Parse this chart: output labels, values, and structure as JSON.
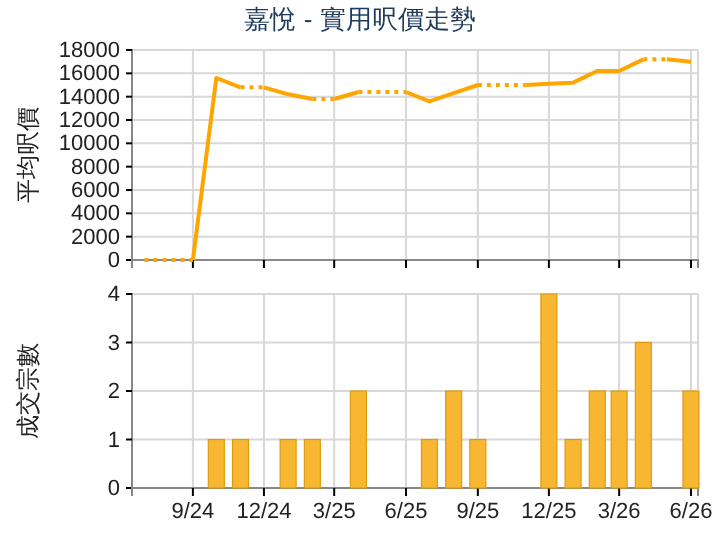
{
  "chart_data": [
    {
      "type": "line",
      "title": "嘉悅 - 實用呎價走勢",
      "ylabel": "平均呎價",
      "xlim": [
        "2024-06-15",
        "2026-06-10"
      ],
      "ylim": [
        0,
        18000
      ],
      "yticks": [
        0,
        2000,
        4000,
        6000,
        8000,
        10000,
        12000,
        14000,
        16000,
        18000
      ],
      "xticks": [
        {
          "value": "2024-09",
          "label": null
        },
        {
          "value": "2024-12",
          "label": null
        },
        {
          "value": "2025-03",
          "label": null
        },
        {
          "value": "2025-06",
          "label": null
        },
        {
          "value": "2025-09",
          "label": null
        },
        {
          "value": "2025-12",
          "label": null
        },
        {
          "value": "2026-03",
          "label": null
        },
        {
          "value": "2026-06",
          "label": null
        }
      ],
      "grid": true,
      "tick_labels": "y",
      "series": [
        {
          "color": "#ffa500",
          "line_style": "dotted",
          "x": [
            "2024-07",
            "2024-08",
            "2024-09"
          ],
          "values": [
            0,
            0,
            0
          ]
        },
        {
          "color": "#ffa500",
          "line_style": "solid",
          "x": [
            "2024-09",
            "2024-10",
            "2024-11"
          ],
          "values": [
            0,
            15600,
            14800
          ]
        },
        {
          "color": "#ffa500",
          "line_style": "dotted",
          "x": [
            "2024-11",
            "2024-12"
          ],
          "values": [
            14800,
            14800
          ]
        },
        {
          "color": "#ffa500",
          "line_style": "solid",
          "x": [
            "2024-12",
            "2025-01",
            "2025-02"
          ],
          "values": [
            14800,
            14200,
            13800
          ]
        },
        {
          "color": "#ffa500",
          "line_style": "dotted",
          "x": [
            "2025-02",
            "2025-03"
          ],
          "values": [
            13800,
            13800
          ]
        },
        {
          "color": "#ffa500",
          "line_style": "solid",
          "x": [
            "2025-03",
            "2025-04"
          ],
          "values": [
            13800,
            14400
          ]
        },
        {
          "color": "#ffa500",
          "line_style": "dotted",
          "x": [
            "2025-04",
            "2025-05",
            "2025-06"
          ],
          "values": [
            14400,
            14400,
            14400
          ]
        },
        {
          "color": "#ffa500",
          "line_style": "solid",
          "x": [
            "2025-06",
            "2025-07",
            "2025-08",
            "2025-09"
          ],
          "values": [
            14400,
            13600,
            14300,
            15000
          ]
        },
        {
          "color": "#ffa500",
          "line_style": "dotted",
          "x": [
            "2025-09",
            "2025-10",
            "2025-11"
          ],
          "values": [
            15000,
            15000,
            15000
          ]
        },
        {
          "color": "#ffa500",
          "line_style": "solid",
          "x": [
            "2025-11",
            "2025-12",
            "2026-01",
            "2026-02",
            "2026-03",
            "2026-04"
          ],
          "values": [
            15000,
            15100,
            15200,
            16200,
            16200,
            17200
          ]
        },
        {
          "color": "#ffa500",
          "line_style": "dotted",
          "x": [
            "2026-04",
            "2026-05"
          ],
          "values": [
            17200,
            17200
          ]
        },
        {
          "color": "#ffa500",
          "line_style": "solid",
          "x": [
            "2026-05",
            "2026-06"
          ],
          "values": [
            17200,
            17000
          ]
        }
      ]
    },
    {
      "type": "bar",
      "ylabel": "成交宗數",
      "xlim": [
        "2024-06-15",
        "2026-06-10"
      ],
      "ylim": [
        0,
        4
      ],
      "yticks": [
        0,
        1,
        2,
        3,
        4
      ],
      "xticks": [
        {
          "value": "2024-09",
          "label": "9/24"
        },
        {
          "value": "2024-12",
          "label": "12/24"
        },
        {
          "value": "2025-03",
          "label": "3/25"
        },
        {
          "value": "2025-06",
          "label": "6/25"
        },
        {
          "value": "2025-09",
          "label": "9/25"
        },
        {
          "value": "2025-12",
          "label": "12/25"
        },
        {
          "value": "2026-03",
          "label": "3/26"
        },
        {
          "value": "2026-06",
          "label": "6/26"
        }
      ],
      "grid": true,
      "series": [
        {
          "color": "#f7b733",
          "x": [
            "2024-10",
            "2024-11",
            "2025-01",
            "2025-02",
            "2025-04",
            "2025-07",
            "2025-08",
            "2025-09",
            "2025-12",
            "2026-01",
            "2026-02",
            "2026-03",
            "2026-04",
            "2026-06"
          ],
          "values": [
            1,
            1,
            1,
            1,
            2,
            1,
            2,
            1,
            4,
            1,
            2,
            2,
            3,
            2
          ]
        }
      ]
    }
  ]
}
